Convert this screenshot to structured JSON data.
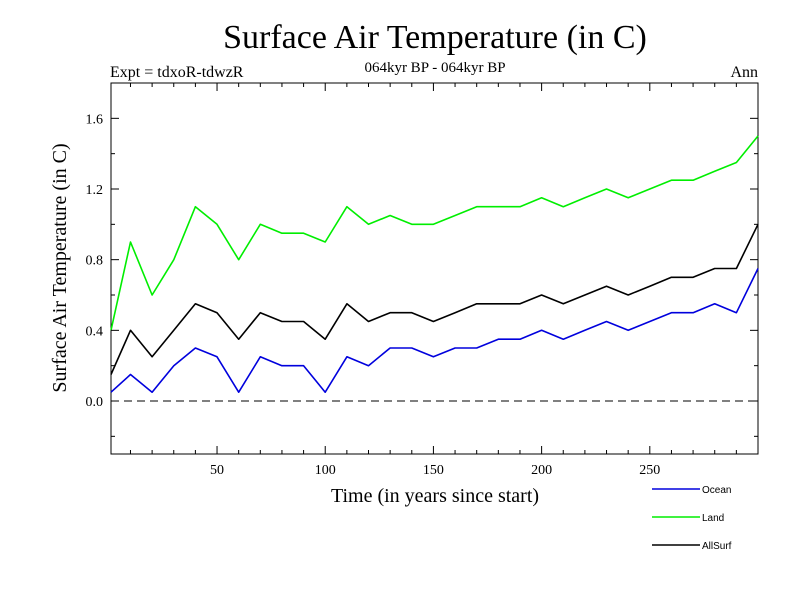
{
  "chart_data": {
    "type": "line",
    "title": "Surface Air Temperature (in C)",
    "subtitle": "064kyr BP - 064kyr BP",
    "left_label": "Expt = tdxoR-tdwzR",
    "right_label": "Ann",
    "xlabel": "Time (in years since start)",
    "ylabel": "Surface Air Temperature (in C)",
    "xlim": [
      1,
      300
    ],
    "ylim": [
      -0.3,
      1.8
    ],
    "xticks": [
      50,
      100,
      150,
      200,
      250
    ],
    "xtick_labels": [
      "50",
      "100",
      "150",
      "200",
      "250"
    ],
    "yticks": [
      0.0,
      0.4,
      0.8,
      1.2,
      1.6
    ],
    "ytick_labels": [
      "0.0",
      "0.4",
      "0.8",
      "1.2",
      "1.6"
    ],
    "reference_line": 0.0,
    "legend_position": "bottom-right",
    "series": [
      {
        "name": "Ocean",
        "color": "#0000dd",
        "x": [
          1,
          10,
          20,
          30,
          40,
          50,
          60,
          70,
          80,
          90,
          100,
          110,
          120,
          130,
          140,
          150,
          160,
          170,
          180,
          190,
          200,
          210,
          220,
          230,
          240,
          250,
          260,
          270,
          280,
          290,
          300
        ],
        "values": [
          0.05,
          0.15,
          0.05,
          0.2,
          0.3,
          0.25,
          0.05,
          0.25,
          0.2,
          0.2,
          0.05,
          0.25,
          0.2,
          0.3,
          0.3,
          0.25,
          0.3,
          0.3,
          0.35,
          0.35,
          0.4,
          0.35,
          0.4,
          0.45,
          0.4,
          0.45,
          0.5,
          0.5,
          0.55,
          0.5,
          0.75
        ]
      },
      {
        "name": "Land",
        "color": "#00ee00",
        "x": [
          1,
          10,
          20,
          30,
          40,
          50,
          60,
          70,
          80,
          90,
          100,
          110,
          120,
          130,
          140,
          150,
          160,
          170,
          180,
          190,
          200,
          210,
          220,
          230,
          240,
          250,
          260,
          270,
          280,
          290,
          300
        ],
        "values": [
          0.4,
          0.9,
          0.6,
          0.8,
          1.1,
          1.0,
          0.8,
          1.0,
          0.95,
          0.95,
          0.9,
          1.1,
          1.0,
          1.05,
          1.0,
          1.0,
          1.05,
          1.1,
          1.1,
          1.1,
          1.15,
          1.1,
          1.15,
          1.2,
          1.15,
          1.2,
          1.25,
          1.25,
          1.3,
          1.35,
          1.5
        ]
      },
      {
        "name": "AllSurf",
        "color": "#000000",
        "x": [
          1,
          10,
          20,
          30,
          40,
          50,
          60,
          70,
          80,
          90,
          100,
          110,
          120,
          130,
          140,
          150,
          160,
          170,
          180,
          190,
          200,
          210,
          220,
          230,
          240,
          250,
          260,
          270,
          280,
          290,
          300
        ],
        "values": [
          0.15,
          0.4,
          0.25,
          0.4,
          0.55,
          0.5,
          0.35,
          0.5,
          0.45,
          0.45,
          0.35,
          0.55,
          0.45,
          0.5,
          0.5,
          0.45,
          0.5,
          0.55,
          0.55,
          0.55,
          0.6,
          0.55,
          0.6,
          0.65,
          0.6,
          0.65,
          0.7,
          0.7,
          0.75,
          0.75,
          1.0
        ]
      }
    ]
  }
}
